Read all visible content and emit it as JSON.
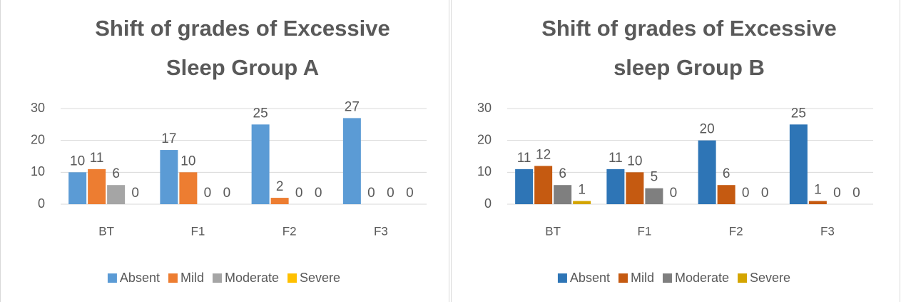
{
  "chart_data": [
    {
      "type": "bar",
      "title": "Shift of grades of Excessive Sleep Group A",
      "categories": [
        "BT",
        "F1",
        "F2",
        "F3"
      ],
      "series": [
        {
          "name": "Absent",
          "color": "#5b9bd5",
          "values": [
            10,
            17,
            25,
            27
          ]
        },
        {
          "name": "Mild",
          "color": "#ed7d31",
          "values": [
            11,
            10,
            2,
            0
          ]
        },
        {
          "name": "Moderate",
          "color": "#a5a5a5",
          "values": [
            6,
            0,
            0,
            0
          ]
        },
        {
          "name": "Severe",
          "color": "#ffc000",
          "values": [
            0,
            0,
            0,
            0
          ]
        }
      ],
      "ylim": [
        0,
        30
      ],
      "yticks": [
        0,
        10,
        20,
        30
      ],
      "grid": true,
      "legend": "bottom"
    },
    {
      "type": "bar",
      "title": "Shift of grades of Excessive sleep Group B",
      "categories": [
        "BT",
        "F1",
        "F2",
        "F3"
      ],
      "series": [
        {
          "name": "Absent",
          "color": "#2e75b6",
          "values": [
            11,
            11,
            20,
            25
          ]
        },
        {
          "name": "Mild",
          "color": "#c55a11",
          "values": [
            12,
            10,
            6,
            1
          ]
        },
        {
          "name": "Moderate",
          "color": "#7f7f7f",
          "values": [
            6,
            5,
            0,
            0
          ]
        },
        {
          "name": "Severe",
          "color": "#d4a500",
          "values": [
            1,
            0,
            0,
            0
          ]
        }
      ],
      "ylim": [
        0,
        30
      ],
      "yticks": [
        0,
        10,
        20,
        30
      ],
      "grid": true,
      "legend": "bottom"
    }
  ]
}
